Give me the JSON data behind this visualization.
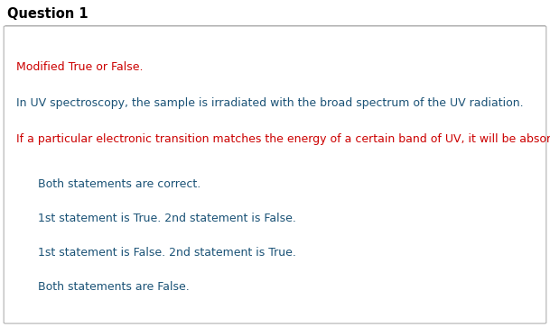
{
  "title": "Question 1",
  "title_color": "#000000",
  "title_fontsize": 10.5,
  "bg_color": "#ffffff",
  "border_color": "#b0b0b0",
  "instruction_text": "Modified True or False.",
  "instruction_color": "#cc0000",
  "statement1": "In UV spectroscopy, the sample is irradiated with the broad spectrum of the UV radiation.",
  "statement1_color": "#1a5276",
  "statement2": "If a particular electronic transition matches the energy of a certain band of UV, it will be absorbed.",
  "statement2_color": "#cc0000",
  "choices": [
    "Both statements are correct.",
    "1st statement is True. 2nd statement is False.",
    "1st statement is False. 2nd statement is True.",
    "Both statements are False."
  ],
  "choice_color": "#1a5276",
  "choice_fontsize": 9.0,
  "text_fontsize": 9.0,
  "radio_color": "#888888"
}
